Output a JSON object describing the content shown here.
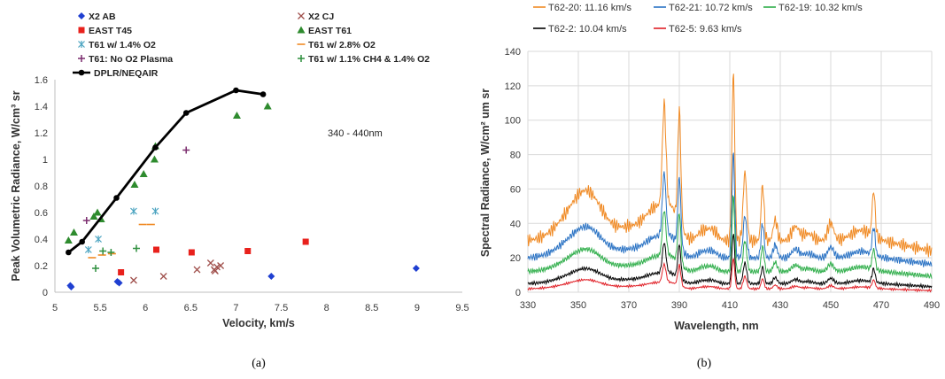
{
  "chart_data": [
    {
      "type": "scatter",
      "xlabel": "Velocity, km/s",
      "ylabel": "Peak Volumetric Radiance, W/cm³ sr",
      "xlim": [
        5,
        9.5
      ],
      "ylim": [
        0,
        1.6
      ],
      "xticks": [
        "5",
        "5.5",
        "6",
        "6.5",
        "7",
        "7.5",
        "8",
        "8.5",
        "9",
        "9.5"
      ],
      "yticks": [
        "0",
        "0.2",
        "0.4",
        "0.6",
        "0.8",
        "1",
        "1.2",
        "1.4",
        "1.6"
      ],
      "grid": false,
      "legend_position": "top",
      "annotation": "340 - 440nm",
      "caption": "(a)",
      "series": [
        {
          "name": "X2 AB",
          "marker": "diamond",
          "color": "#1f3fd1",
          "points": [
            [
              5.17,
              0.05
            ],
            [
              5.18,
              0.04
            ],
            [
              5.69,
              0.08
            ],
            [
              5.71,
              0.07
            ],
            [
              7.39,
              0.12
            ],
            [
              8.99,
              0.18
            ]
          ]
        },
        {
          "name": "X2 CJ",
          "marker": "x",
          "color": "#a0504c",
          "points": [
            [
              5.87,
              0.09
            ],
            [
              6.2,
              0.12
            ],
            [
              6.57,
              0.17
            ],
            [
              6.72,
              0.22
            ],
            [
              6.76,
              0.17
            ],
            [
              6.79,
              0.19
            ],
            [
              6.83,
              0.2
            ],
            [
              6.77,
              0.16
            ]
          ]
        },
        {
          "name": "EAST T45",
          "marker": "square",
          "color": "#e8211c",
          "points": [
            [
              5.73,
              0.15
            ],
            [
              6.12,
              0.32
            ],
            [
              6.51,
              0.3
            ],
            [
              7.13,
              0.31
            ],
            [
              7.77,
              0.38
            ]
          ]
        },
        {
          "name": "EAST T61",
          "marker": "triangle",
          "color": "#2e8b2e",
          "points": [
            [
              5.15,
              0.39
            ],
            [
              5.21,
              0.45
            ],
            [
              5.43,
              0.57
            ],
            [
              5.47,
              0.6
            ],
            [
              5.51,
              0.55
            ],
            [
              5.88,
              0.81
            ],
            [
              5.98,
              0.89
            ],
            [
              6.1,
              1.0
            ],
            [
              6.11,
              1.1
            ],
            [
              7.01,
              1.33
            ],
            [
              7.35,
              1.4
            ]
          ]
        },
        {
          "name": "T61 w/ 1.4% O2",
          "marker": "asterisk",
          "color": "#4aa3c0",
          "points": [
            [
              5.37,
              0.32
            ],
            [
              5.48,
              0.4
            ],
            [
              5.87,
              0.61
            ],
            [
              6.11,
              0.61
            ]
          ]
        },
        {
          "name": "T61 w/ 2.8% O2",
          "marker": "dash",
          "color": "#f08a24",
          "points": [
            [
              5.41,
              0.26
            ],
            [
              5.52,
              0.28
            ],
            [
              5.63,
              0.29
            ],
            [
              5.97,
              0.51
            ],
            [
              6.06,
              0.51
            ]
          ]
        },
        {
          "name": "T61: No O2 Plasma",
          "marker": "plus",
          "color": "#7b2d6e",
          "points": [
            [
              5.35,
              0.54
            ],
            [
              6.45,
              1.07
            ]
          ]
        },
        {
          "name": "T61 w/ 1.1% CH4 & 1.4% O2",
          "marker": "plus",
          "color": "#2f8f3f",
          "points": [
            [
              5.45,
              0.18
            ],
            [
              5.62,
              0.3
            ],
            [
              5.9,
              0.33
            ],
            [
              5.53,
              0.31
            ]
          ]
        },
        {
          "name": "DPLR/NEQAIR",
          "marker": "circle-line",
          "color": "#000000",
          "points": [
            [
              5.15,
              0.3
            ],
            [
              5.3,
              0.38
            ],
            [
              5.68,
              0.71
            ],
            [
              6.11,
              1.09
            ],
            [
              6.45,
              1.35
            ],
            [
              7.0,
              1.52
            ],
            [
              7.3,
              1.49
            ]
          ]
        }
      ]
    },
    {
      "type": "line",
      "xlabel": "Wavelength, nm",
      "ylabel": "Spectral Radiance, W/cm² um sr",
      "xlim": [
        330,
        490
      ],
      "ylim": [
        0,
        140
      ],
      "xticks": [
        "330",
        "350",
        "370",
        "390",
        "410",
        "430",
        "450",
        "470",
        "490"
      ],
      "yticks": [
        "0",
        "20",
        "40",
        "60",
        "80",
        "100",
        "120",
        "140"
      ],
      "grid": true,
      "legend_position": "top",
      "caption": "(b)",
      "series": [
        {
          "name": "T62-20: 11.16 km/s",
          "color": "#f08a24",
          "base": 30,
          "scale": 1.0
        },
        {
          "name": "T62-21: 10.72 km/s",
          "color": "#2b73c4",
          "base": 20,
          "scale": 0.62
        },
        {
          "name": "T62-19: 10.32 km/s",
          "color": "#2fae4a",
          "base": 12,
          "scale": 0.45
        },
        {
          "name": "T62-2: 10.04 km/s",
          "color": "#000000",
          "base": 5,
          "scale": 0.3
        },
        {
          "name": "T62-5: 9.63 km/s",
          "color": "#e01f26",
          "base": 2,
          "scale": 0.18
        }
      ],
      "peaks": [
        {
          "x": 354,
          "y": 60
        },
        {
          "x": 384,
          "y": 94
        },
        {
          "x": 390,
          "y": 104
        },
        {
          "x": 411,
          "y": 131
        },
        {
          "x": 416,
          "y": 70
        },
        {
          "x": 423,
          "y": 62
        },
        {
          "x": 428,
          "y": 42
        },
        {
          "x": 450,
          "y": 35
        },
        {
          "x": 467,
          "y": 50
        }
      ]
    }
  ]
}
